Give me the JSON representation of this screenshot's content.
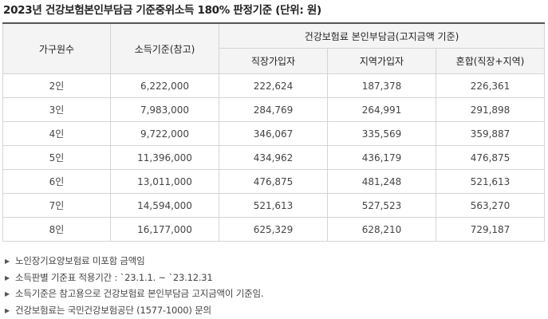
{
  "title": "2023년 건강보험본인부담금 기준중위소득 180% 판정기준 (단위: 원)",
  "headers": {
    "household": "가구원수",
    "income": "소득기준(참고)",
    "premium_group": "건강보험료 본인부담금(고지금액 기준)",
    "workplace": "직장가입자",
    "regional": "지역가입자",
    "mixed": "혼합(직장+지역)"
  },
  "rows": [
    {
      "household": "2인",
      "income": "6,222,000",
      "workplace": "222,624",
      "regional": "187,378",
      "mixed": "226,361"
    },
    {
      "household": "3인",
      "income": "7,983,000",
      "workplace": "284,769",
      "regional": "264,991",
      "mixed": "291,898"
    },
    {
      "household": "4인",
      "income": "9,722,000",
      "workplace": "346,067",
      "regional": "335,569",
      "mixed": "359,887"
    },
    {
      "household": "5인",
      "income": "11,396,000",
      "workplace": "434,962",
      "regional": "436,179",
      "mixed": "476,875"
    },
    {
      "household": "6인",
      "income": "13,011,000",
      "workplace": "476,875",
      "regional": "481,248",
      "mixed": "521,613"
    },
    {
      "household": "7인",
      "income": "14,594,000",
      "workplace": "521,613",
      "regional": "527,523",
      "mixed": "563,270"
    },
    {
      "household": "8인",
      "income": "16,177,000",
      "workplace": "625,329",
      "regional": "628,210",
      "mixed": "729,187"
    }
  ],
  "notes": [
    "노인장기요양보험료 미포함 금액임",
    "소득판별 기준표 적용기간 : `23.1.1. ~ `23.12.31",
    "소득기준은 참고용으로 건강보험료 본인부담금 고지금액이 기준임.",
    "건강보험료는 국민건강보험공단 (1577-1000) 문의"
  ],
  "icons": {
    "note_bullet": "triangle-right-icon"
  }
}
